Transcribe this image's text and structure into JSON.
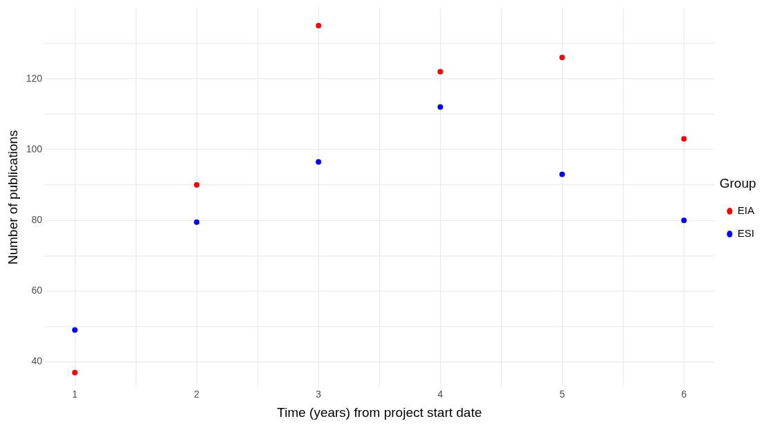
{
  "chart_data": {
    "type": "scatter",
    "xlabel": "Time (years) from project start date",
    "ylabel": "Number of publications",
    "legend_title": "Group",
    "x": [
      1,
      2,
      3,
      4,
      5,
      6
    ],
    "series": [
      {
        "name": "EIA",
        "color": "#ff0000",
        "values": [
          37,
          90,
          135,
          122,
          126,
          103
        ]
      },
      {
        "name": "ESI",
        "color": "#0000ff",
        "values": [
          49,
          79.5,
          96.5,
          112,
          93,
          80
        ]
      }
    ],
    "xlim": [
      0.75,
      6.25
    ],
    "xticks": [
      1,
      {
        "value": 1.5,
        "label": null
      },
      2,
      {
        "value": 2.5,
        "label": null
      },
      3,
      {
        "value": 3.5,
        "label": null
      },
      4,
      {
        "value": 4.5,
        "label": null
      },
      5,
      {
        "value": 5.5,
        "label": null
      },
      6
    ],
    "ylim": [
      33,
      140
    ],
    "yticks": [
      40,
      {
        "value": 50,
        "label": null
      },
      60,
      {
        "value": 70,
        "label": null
      },
      80,
      {
        "value": 90,
        "label": null
      },
      100,
      {
        "value": 110,
        "label": null
      },
      120,
      {
        "value": 130,
        "label": null
      }
    ],
    "grid": true,
    "legend": "right",
    "marker": "circle"
  }
}
